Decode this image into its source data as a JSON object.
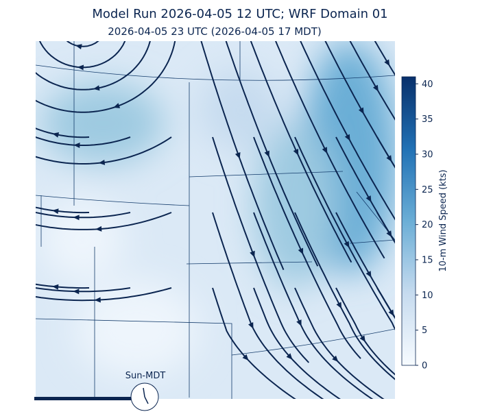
{
  "title": "Model Run 2026-04-05 12 UTC; WRF Domain 01",
  "subtitle": "2026-04-05 23 UTC  (2026-04-05 17 MDT)",
  "colorbar": {
    "label": "10-m Wind Speed (kts)",
    "lim": [
      0,
      41
    ],
    "ticks": [
      0,
      5,
      10,
      15,
      20,
      25,
      30,
      35,
      40
    ]
  },
  "clock": {
    "label": "Sun-MDT"
  }
}
